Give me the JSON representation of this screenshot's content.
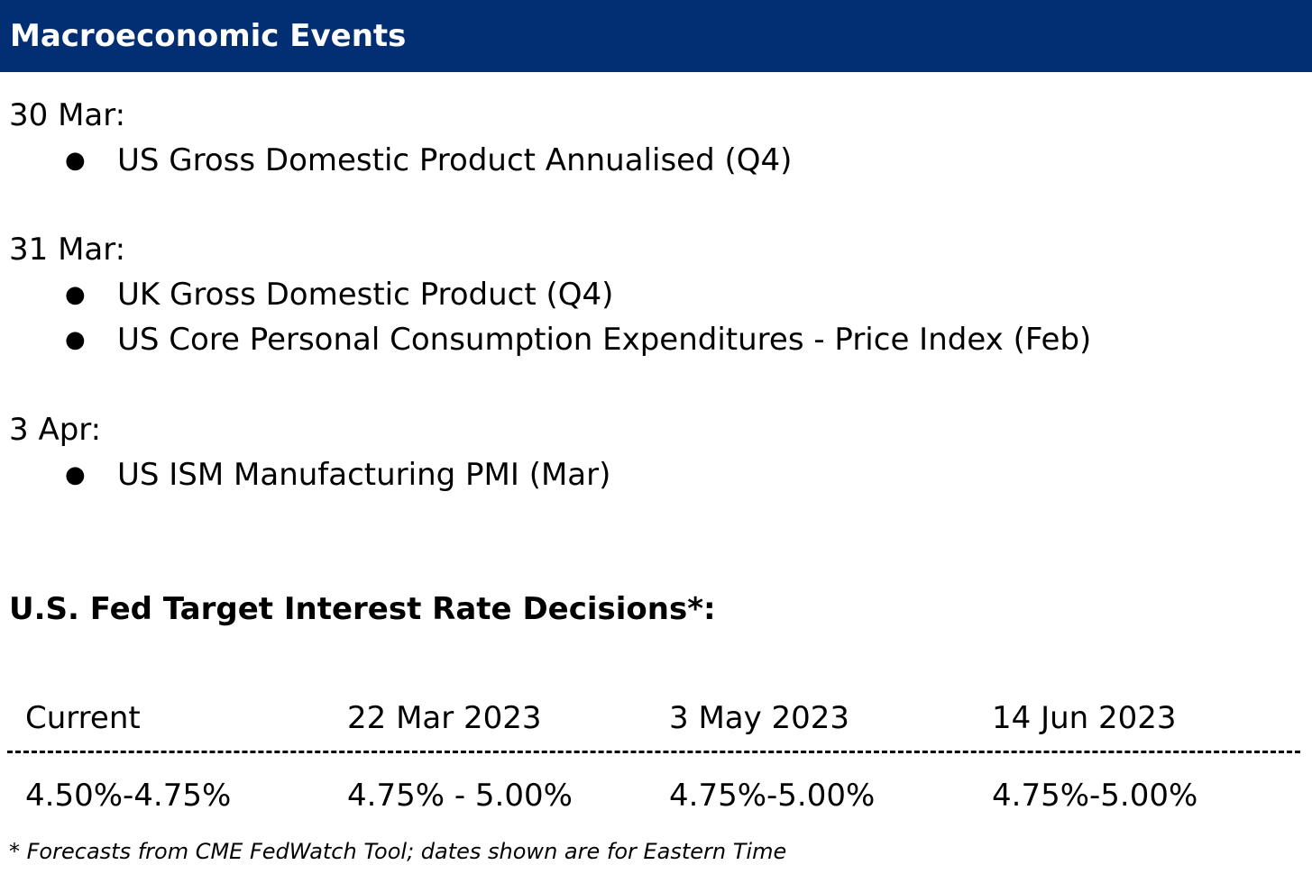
{
  "header": {
    "title": "Macroeconomic Events",
    "background_color": "#022f73"
  },
  "events": [
    {
      "date": "30 Mar:",
      "items": [
        "US Gross Domestic Product Annualised (Q4)"
      ]
    },
    {
      "date": "31 Mar:",
      "items": [
        "UK Gross Domestic Product (Q4)",
        "US Core Personal Consumption Expenditures - Price Index (Feb)"
      ]
    },
    {
      "date": "3 Apr:",
      "items": [
        "US ISM Manufacturing PMI (Mar)"
      ]
    }
  ],
  "bullet_glyph": "●",
  "rates": {
    "title": "U.S. Fed Target Interest Rate Decisions*:",
    "columns": [
      "Current",
      "22 Mar 2023",
      "3 May 2023",
      "14 Jun 2023"
    ],
    "values": [
      "4.50%-4.75%",
      "4.75% - 5.00%",
      "4.75%-5.00%",
      "4.75%-5.00%"
    ]
  },
  "footnote": "* Forecasts from CME FedWatch Tool; dates shown are for Eastern Time"
}
